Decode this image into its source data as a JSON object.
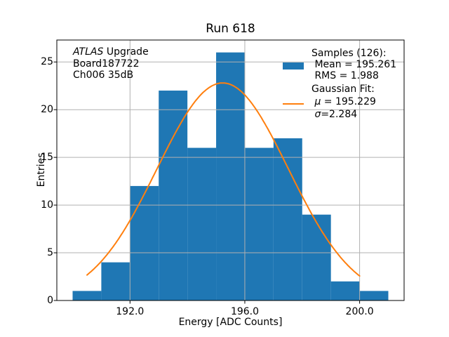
{
  "figure": {
    "title": "Run 618",
    "xlabel": "Energy [ADC Counts]",
    "ylabel": "Entries",
    "annotation": {
      "line1_italic": "ATLAS",
      "line1_rest": " Upgrade",
      "line2": "Board187722",
      "line3": "Ch006 35dB"
    },
    "legend": {
      "samples_header": "Samples (126):",
      "mean_label": " Mean = 195.261",
      "rms_label": " RMS = 1.988",
      "fit_header": "Gaussian Fit:",
      "mu_symbol": " μ",
      "mu_value": " = 195.229",
      "sigma_symbol": " σ",
      "sigma_value": "=2.284"
    },
    "colors": {
      "bar": "#1f77b4",
      "curve": "#ff7f0e",
      "grid": "#b0b0b0",
      "spine": "#000000",
      "background": "#ffffff"
    }
  },
  "chart_data": {
    "type": "bar",
    "subtype": "histogram-with-gaussian-fit",
    "title": "Run 618",
    "xlabel": "Energy [ADC Counts]",
    "ylabel": "Entries",
    "bin_edges": [
      190,
      191,
      192,
      193,
      194,
      195,
      196,
      197,
      198,
      199,
      200,
      201
    ],
    "counts": [
      1,
      4,
      12,
      22,
      16,
      26,
      16,
      17,
      9,
      2,
      1
    ],
    "n_samples": 126,
    "xlim": [
      189.45,
      201.55
    ],
    "ylim": [
      0,
      27.3
    ],
    "xticks": [
      192.0,
      196.0,
      200.0
    ],
    "xtick_labels": [
      "192.0",
      "196.0",
      "200.0"
    ],
    "yticks": [
      0,
      5,
      10,
      15,
      20,
      25
    ],
    "ytick_labels": [
      "0",
      "5",
      "10",
      "15",
      "20",
      "25"
    ],
    "grid": true,
    "grid_above_bars": true,
    "legend_position": "upper right",
    "histogram": {
      "name": "Samples (126)",
      "color": "#1f77b4",
      "mean": 195.261,
      "rms": 1.988
    },
    "gaussian_fit": {
      "name": "Gaussian Fit",
      "color": "#ff7f0e",
      "mu": 195.229,
      "sigma": 2.284,
      "amplitude": 22.8,
      "x_range": [
        190.5,
        200.0
      ]
    }
  }
}
